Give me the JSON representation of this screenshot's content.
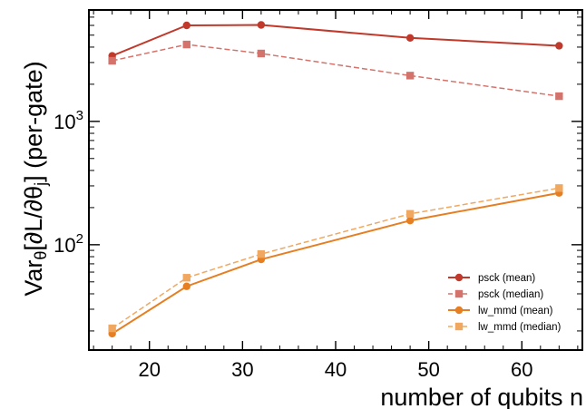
{
  "chart_data": {
    "type": "line",
    "title": "",
    "xlabel": "number of qubits  n",
    "ylabel_parts": {
      "var": "Var",
      "var_sub": "θ",
      "open": "[∂L/∂θ",
      "open_sub": "j",
      "close": "]  (per-gate)"
    },
    "x": [
      16,
      24,
      32,
      48,
      64
    ],
    "xlim": [
      13.5,
      66.5
    ],
    "ylim": [
      14,
      8000
    ],
    "yscale": "log",
    "x_ticks": [
      20,
      30,
      40,
      50,
      60
    ],
    "x_tick_labels": [
      "20",
      "30",
      "40",
      "50",
      "60"
    ],
    "y_tick_labels": [
      {
        "value": 100,
        "base": "10",
        "exp": "2"
      },
      {
        "value": 1000,
        "base": "10",
        "exp": "3"
      }
    ],
    "grid": false,
    "legend_position": "bottom-right",
    "series": [
      {
        "name": "psck (mean)",
        "values": [
          3400,
          6000,
          6050,
          4750,
          4100
        ],
        "color": "#c0392b",
        "marker": "circle",
        "dash": "solid"
      },
      {
        "name": "psck (median)",
        "values": [
          3100,
          4200,
          3550,
          2350,
          1600
        ],
        "color": "#d4736b",
        "marker": "square",
        "dash": "dashed"
      },
      {
        "name": "lw_mmd (mean)",
        "values": [
          19,
          46,
          76,
          157,
          263
        ],
        "color": "#e67e22",
        "marker": "circle",
        "dash": "solid"
      },
      {
        "name": "lw_mmd (median)",
        "values": [
          21,
          54,
          84,
          178,
          288
        ],
        "color": "#f0a860",
        "marker": "square",
        "dash": "dashed"
      }
    ]
  }
}
